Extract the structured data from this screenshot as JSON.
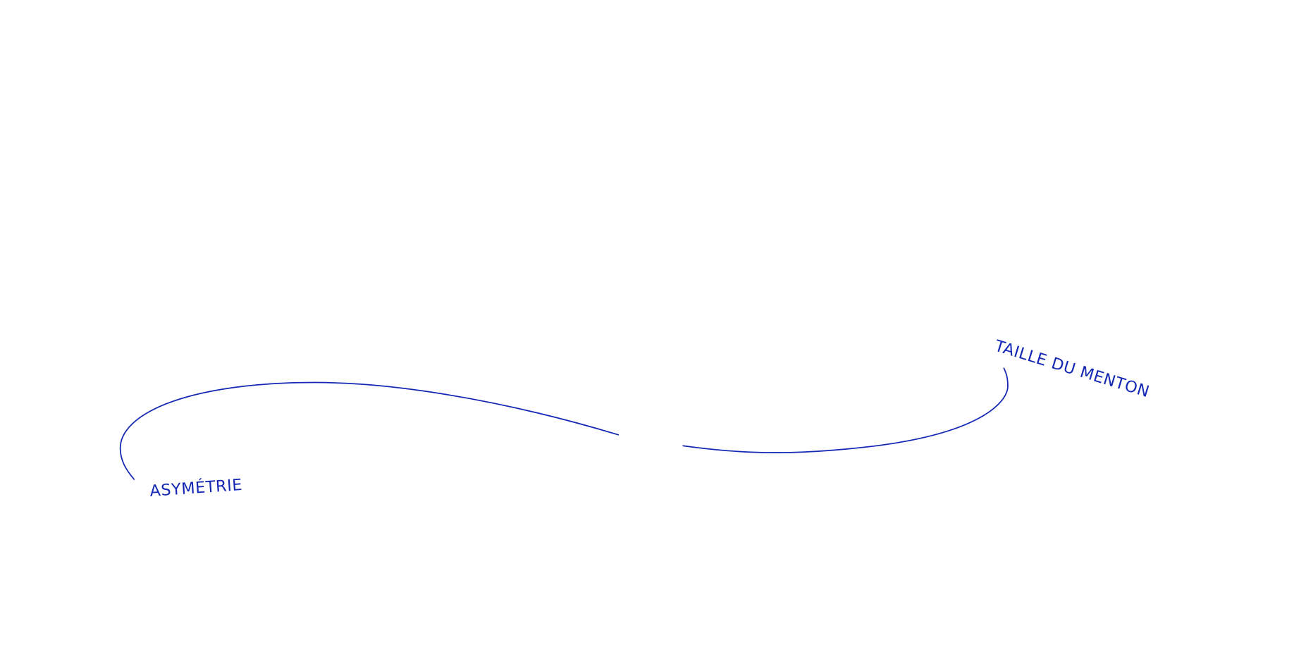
{
  "annotations": [
    {
      "text": "ASYMÉTRIE"
    },
    {
      "text": "TAILLE DU MENTON"
    }
  ]
}
